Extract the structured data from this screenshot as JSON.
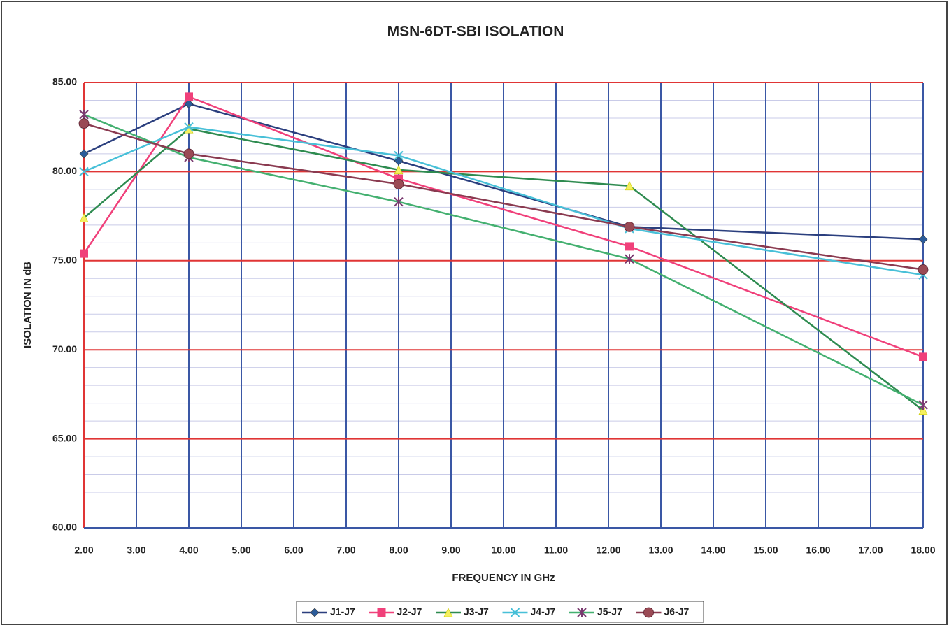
{
  "chart_data": {
    "type": "line",
    "title": "MSN-6DT-SBI  ISOLATION",
    "x_label": "FREQUENCY IN GHz",
    "y_label": "ISOLATION IN dB",
    "x": [
      2,
      4,
      8,
      12.4,
      18
    ],
    "xlim": [
      2,
      18
    ],
    "xticks": [
      {
        "value": 2,
        "label": "2.00"
      },
      {
        "value": 3,
        "label": "3.00"
      },
      {
        "value": 4,
        "label": "4.00"
      },
      {
        "value": 5,
        "label": "5.00"
      },
      {
        "value": 6,
        "label": "6.00"
      },
      {
        "value": 7,
        "label": "7.00"
      },
      {
        "value": 8,
        "label": "8.00"
      },
      {
        "value": 9,
        "label": "9.00"
      },
      {
        "value": 10,
        "label": "10.00"
      },
      {
        "value": 11,
        "label": "11.00"
      },
      {
        "value": 12,
        "label": "12.00"
      },
      {
        "value": 13,
        "label": "13.00"
      },
      {
        "value": 14,
        "label": "14.00"
      },
      {
        "value": 15,
        "label": "15.00"
      },
      {
        "value": 16,
        "label": "16.00"
      },
      {
        "value": 17,
        "label": "17.00"
      },
      {
        "value": 18,
        "label": "18.00"
      }
    ],
    "ylim": [
      60,
      85
    ],
    "yticks": [
      {
        "value": 60,
        "label": "60.00"
      },
      {
        "value": 65,
        "label": "65.00"
      },
      {
        "value": 70,
        "label": "70.00"
      },
      {
        "value": 75,
        "label": "75.00"
      },
      {
        "value": 80,
        "label": "80.00"
      },
      {
        "value": 85,
        "label": "85.00"
      }
    ],
    "y_minor_ticks": [
      61,
      62,
      63,
      64,
      66,
      67,
      68,
      69,
      71,
      72,
      73,
      74,
      76,
      77,
      78,
      79,
      81,
      82,
      83,
      84
    ],
    "grid": true,
    "legend": "bottom",
    "series": [
      {
        "name": "J1-J7",
        "color": "#2b3f7e",
        "marker_color": "#2b5c9a",
        "marker": "diamond",
        "values": [
          81.0,
          83.8,
          80.6,
          76.9,
          76.2
        ]
      },
      {
        "name": "J2-J7",
        "color": "#f0407a",
        "marker_color": "#f0407a",
        "marker": "square",
        "values": [
          75.4,
          84.2,
          79.6,
          75.8,
          69.6
        ]
      },
      {
        "name": "J3-J7",
        "color": "#2e8b50",
        "marker_color": "#f5f060",
        "marker": "triangle",
        "values": [
          77.4,
          82.4,
          80.1,
          79.2,
          66.6
        ]
      },
      {
        "name": "J4-J7",
        "color": "#48c0d8",
        "marker_color": "#48c0d8",
        "marker": "x",
        "values": [
          80.0,
          82.5,
          80.9,
          76.8,
          74.2
        ]
      },
      {
        "name": "J5-J7",
        "color": "#44b070",
        "marker_color": "#7a3a70",
        "marker": "star",
        "values": [
          83.2,
          80.8,
          78.3,
          75.1,
          66.9
        ]
      },
      {
        "name": "J6-J7",
        "color": "#8a3a50",
        "marker_color": "#9a4a55",
        "marker": "circle",
        "values": [
          82.7,
          81.0,
          79.3,
          76.9,
          74.5
        ]
      }
    ]
  }
}
